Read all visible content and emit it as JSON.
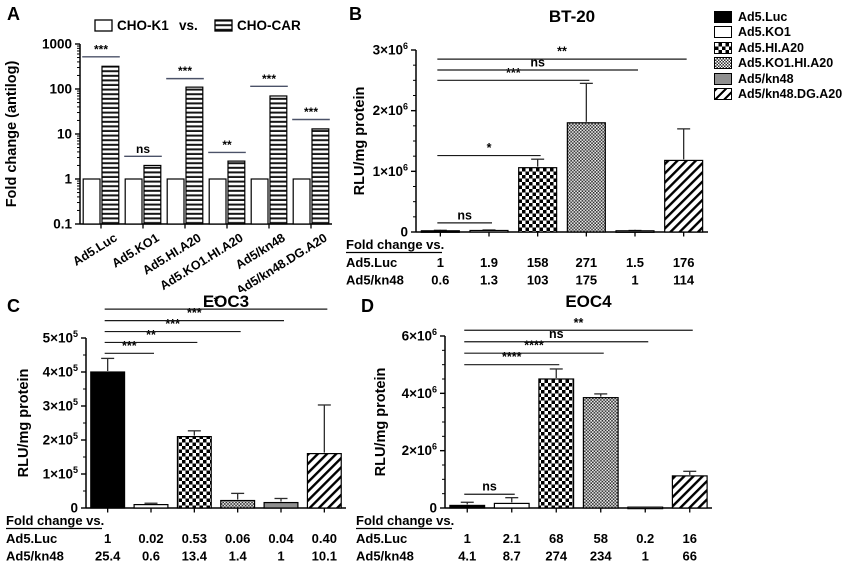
{
  "panels": {
    "a_label": "A",
    "b_label": "B",
    "c_label": "C",
    "d_label": "D"
  },
  "legend": {
    "items": [
      {
        "label": "Ad5.Luc",
        "pattern": "black"
      },
      {
        "label": "Ad5.KO1",
        "pattern": "white"
      },
      {
        "label": "Ad5.HI.A20",
        "pattern": "checker"
      },
      {
        "label": "Ad5.KO1.HI.A20",
        "pattern": "finecheck"
      },
      {
        "label": "Ad5/kn48",
        "pattern": "gray"
      },
      {
        "label": "Ad5/kn48.DG.A20",
        "pattern": "diag"
      }
    ]
  },
  "chart_data": [
    {
      "id": "chartA",
      "type": "bar",
      "subtype": "grouped",
      "title": "",
      "ylabel": "Fold change (antilog)",
      "yscale": "log",
      "ylim": [
        0.1,
        1000
      ],
      "yticks": [
        {
          "v": 0.1,
          "label": "0.1"
        },
        {
          "v": 1,
          "label": "1"
        },
        {
          "v": 10,
          "label": "10"
        },
        {
          "v": 100,
          "label": "100"
        },
        {
          "v": 1000,
          "label": "1000"
        }
      ],
      "categories": [
        "Ad5.Luc",
        "Ad5.KO1",
        "Ad5.HI.A20",
        "Ad5.KO1.HI.A20",
        "Ad5/kn48",
        "Ad5/kn48.DG.A20"
      ],
      "legend_vs": "vs.",
      "series": [
        {
          "name": "CHO-K1",
          "pattern": "white",
          "values": [
            1,
            1,
            1,
            1,
            1,
            1
          ]
        },
        {
          "name": "CHO-CAR",
          "pattern": "hlines",
          "values": [
            320,
            2,
            110,
            2.5,
            70,
            13
          ]
        }
      ],
      "sig": [
        {
          "label": "***",
          "y": 520
        },
        {
          "label": "ns",
          "y": 3.2
        },
        {
          "label": "***",
          "y": 170
        },
        {
          "label": "**",
          "y": 3.9
        },
        {
          "label": "***",
          "y": 115
        },
        {
          "label": "***",
          "y": 21
        }
      ]
    },
    {
      "id": "chartB",
      "type": "bar",
      "subtype": "single",
      "title": "BT-20",
      "ylabel": "RLU/mg protein",
      "yscale": "linear",
      "ylim": [
        0,
        3000000
      ],
      "minor_step": 250000,
      "yticks": [
        {
          "v": 0,
          "label": "0"
        },
        {
          "v": 1000000,
          "coef": "1×10",
          "exp": "6"
        },
        {
          "v": 2000000,
          "coef": "2×10",
          "exp": "6"
        },
        {
          "v": 3000000,
          "coef": "3×10",
          "exp": "6"
        }
      ],
      "categories": [
        "Ad5.Luc",
        "Ad5.KO1",
        "Ad5.HI.A20",
        "Ad5.KO1.HI.A20",
        "Ad5/kn48",
        "Ad5/kn48.DG.A20"
      ],
      "bars": [
        {
          "pattern": "black",
          "value": 20000,
          "err": 8000
        },
        {
          "pattern": "white",
          "value": 25000,
          "err": 8000
        },
        {
          "pattern": "checker",
          "value": 1060000,
          "err": 140000
        },
        {
          "pattern": "finecheck",
          "value": 1800000,
          "err": 650000
        },
        {
          "pattern": "gray",
          "value": 20000,
          "err": 5000
        },
        {
          "pattern": "diag",
          "value": 1180000,
          "err": 520000
        }
      ],
      "sig": [
        {
          "end": 2,
          "label": "ns",
          "y": 150000
        },
        {
          "end": 3,
          "label": "*",
          "y": 1260000
        },
        {
          "end": 4,
          "label": "***",
          "y": 2500000
        },
        {
          "end": 5,
          "label": "ns",
          "y": 2670000
        },
        {
          "end": 6,
          "label": "**",
          "y": 2850000
        }
      ],
      "fold_table": {
        "header": "Fold change vs.",
        "rows": [
          {
            "label": "Ad5.Luc",
            "values": [
              "1",
              "1.9",
              "158",
              "271",
              "1.5",
              "176"
            ]
          },
          {
            "label": "Ad5/kn48",
            "values": [
              "0.6",
              "1.3",
              "103",
              "175",
              "1",
              "114"
            ]
          }
        ]
      }
    },
    {
      "id": "chartC",
      "type": "bar",
      "subtype": "single",
      "title": "EOC3",
      "ylabel": "RLU/mg protein",
      "yscale": "linear",
      "ylim": [
        0,
        500000
      ],
      "minor_step": 50000,
      "yticks": [
        {
          "v": 0,
          "label": "0"
        },
        {
          "v": 100000,
          "coef": "1×10",
          "exp": "5"
        },
        {
          "v": 200000,
          "coef": "2×10",
          "exp": "5"
        },
        {
          "v": 300000,
          "coef": "3×10",
          "exp": "5"
        },
        {
          "v": 400000,
          "coef": "4×10",
          "exp": "5"
        },
        {
          "v": 500000,
          "coef": "5×10",
          "exp": "5"
        }
      ],
      "categories": [
        "Ad5.Luc",
        "Ad5.KO1",
        "Ad5.HI.A20",
        "Ad5.KO1.HI.A20",
        "Ad5/kn48",
        "Ad5/kn48.DG.A20"
      ],
      "bars": [
        {
          "pattern": "black",
          "value": 400000,
          "err": 40000
        },
        {
          "pattern": "white",
          "value": 10000,
          "err": 4000
        },
        {
          "pattern": "checker",
          "value": 210000,
          "err": 17000
        },
        {
          "pattern": "finecheck",
          "value": 22000,
          "err": 21000
        },
        {
          "pattern": "gray",
          "value": 16000,
          "err": 12000
        },
        {
          "pattern": "diag",
          "value": 160000,
          "err": 143000
        }
      ],
      "sig": [
        {
          "end": 2,
          "label": "***",
          "y": 455000
        },
        {
          "end": 3,
          "label": "**",
          "y": 487000
        },
        {
          "end": 4,
          "label": "***",
          "y": 519000
        },
        {
          "end": 5,
          "label": "***",
          "y": 551000
        },
        {
          "end": 6,
          "label": "*",
          "y": 585000
        }
      ],
      "fold_table": {
        "header": "Fold change vs.",
        "rows": [
          {
            "label": "Ad5.Luc",
            "values": [
              "1",
              "0.02",
              "0.53",
              "0.06",
              "0.04",
              "0.40"
            ]
          },
          {
            "label": "Ad5/kn48",
            "values": [
              "25.4",
              "0.6",
              "13.4",
              "1.4",
              "1",
              "10.1"
            ]
          }
        ]
      }
    },
    {
      "id": "chartD",
      "type": "bar",
      "subtype": "single",
      "title": "EOC4",
      "ylabel": "RLU/mg protein",
      "yscale": "linear",
      "ylim": [
        0,
        6000000
      ],
      "minor_step": 500000,
      "yticks": [
        {
          "v": 0,
          "label": "0"
        },
        {
          "v": 2000000,
          "coef": "2×10",
          "exp": "6"
        },
        {
          "v": 4000000,
          "coef": "4×10",
          "exp": "6"
        },
        {
          "v": 6000000,
          "coef": "6×10",
          "exp": "6"
        }
      ],
      "categories": [
        "Ad5.Luc",
        "Ad5.KO1",
        "Ad5.HI.A20",
        "Ad5.KO1.HI.A20",
        "Ad5/kn48",
        "Ad5/kn48.DG.A20"
      ],
      "bars": [
        {
          "pattern": "black",
          "value": 90000,
          "err": 110000
        },
        {
          "pattern": "white",
          "value": 160000,
          "err": 200000
        },
        {
          "pattern": "checker",
          "value": 4500000,
          "err": 350000
        },
        {
          "pattern": "finecheck",
          "value": 3850000,
          "err": 130000
        },
        {
          "pattern": "gray",
          "value": 30000,
          "err": 0
        },
        {
          "pattern": "diag",
          "value": 1120000,
          "err": 160000
        }
      ],
      "sig": [
        {
          "end": 2,
          "label": "ns",
          "y": 480000
        },
        {
          "end": 3,
          "label": "****",
          "y": 5000000
        },
        {
          "end": 4,
          "label": "****",
          "y": 5400000
        },
        {
          "end": 5,
          "label": "ns",
          "y": 5800000
        },
        {
          "end": 6,
          "label": "**",
          "y": 6200000
        }
      ],
      "fold_table": {
        "header": "Fold change vs.",
        "rows": [
          {
            "label": "Ad5.Luc",
            "values": [
              "1",
              "2.1",
              "68",
              "58",
              "0.2",
              "16"
            ]
          },
          {
            "label": "Ad5/kn48",
            "values": [
              "4.1",
              "8.7",
              "274",
              "234",
              "1",
              "66"
            ]
          }
        ]
      }
    }
  ]
}
